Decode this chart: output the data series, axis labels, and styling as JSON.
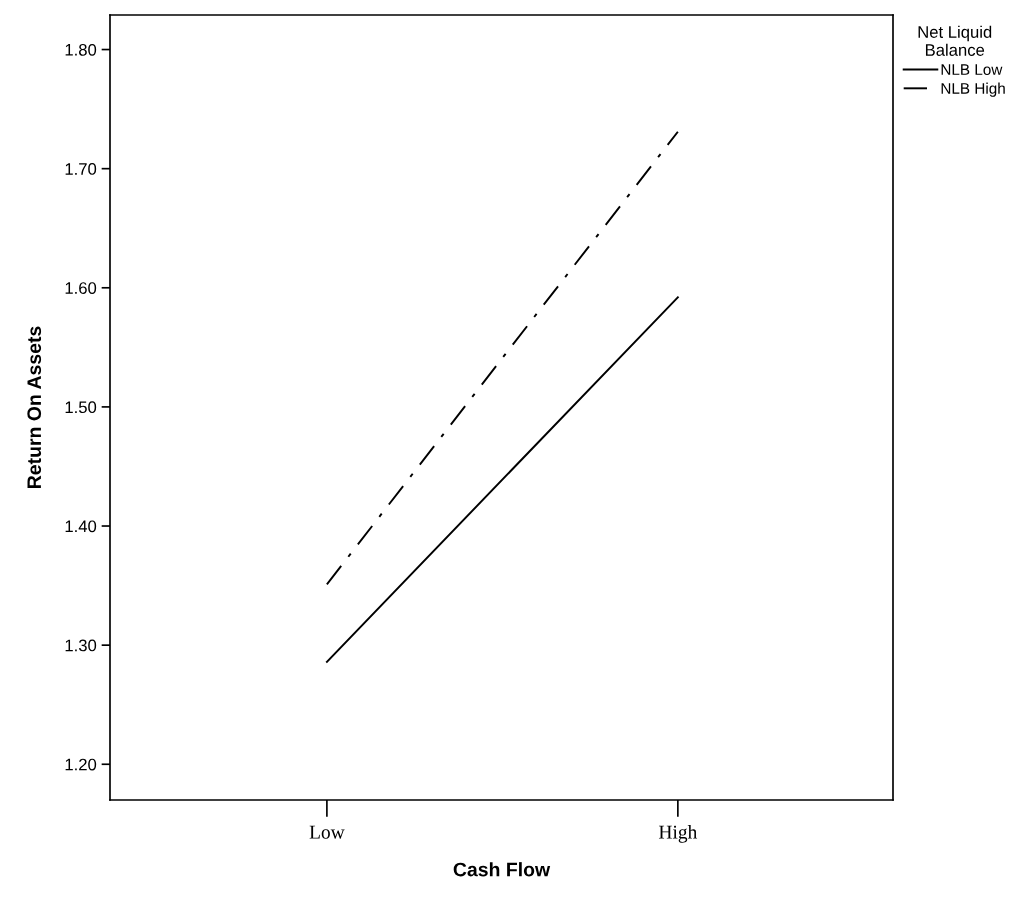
{
  "chart_data": {
    "type": "line",
    "xlabel": "Cash Flow",
    "ylabel": "Return On Assets",
    "legend_title": "Net Liquid\nBalance",
    "categories": [
      "Low",
      "High"
    ],
    "series": [
      {
        "name": "NLB Low",
        "color": "#000000",
        "values": [
          1.286,
          1.592
        ],
        "line_style": "solid"
      },
      {
        "name": "NLB High",
        "color": "#000000",
        "values": [
          1.351,
          1.731
        ],
        "line_style": "dashdot"
      }
    ],
    "ylim": [
      1.17,
      1.829
    ],
    "yticks": [
      {
        "value": 1.2,
        "label": "1.20"
      },
      {
        "value": 1.3,
        "label": "1.30"
      },
      {
        "value": 1.4,
        "label": "1.40"
      },
      {
        "value": 1.5,
        "label": "1.50"
      },
      {
        "value": 1.6,
        "label": "1.60"
      },
      {
        "value": 1.7,
        "label": "1.70"
      },
      {
        "value": 1.8,
        "label": "1.80"
      }
    ],
    "grid": false,
    "legend": "top right",
    "marker": "none"
  }
}
